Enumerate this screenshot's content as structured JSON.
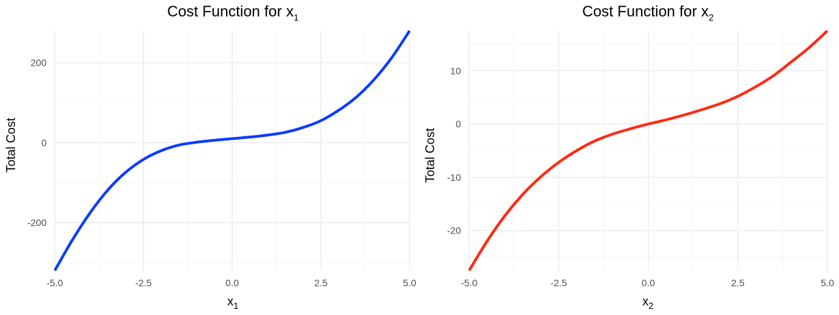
{
  "colors": {
    "panel1_line": "#0a3cff",
    "panel2_line": "#ff2a12"
  },
  "chart_data": [
    {
      "type": "line",
      "title": "Cost Function for x",
      "title_sub": "1",
      "xlabel": "x",
      "xlabel_sub": "1",
      "ylabel": "Total Cost",
      "xlim": [
        -5,
        5
      ],
      "ylim": [
        -320,
        280
      ],
      "x_ticks": [
        -5.0,
        -2.5,
        0.0,
        2.5,
        5.0
      ],
      "x_tick_labels": [
        "-5.0",
        "-2.5",
        "0.0",
        "2.5",
        "5.0"
      ],
      "y_ticks": [
        -200,
        0,
        200
      ],
      "y_tick_labels": [
        "-200",
        "0",
        "200"
      ],
      "grid": true,
      "legend": "none",
      "series": [
        {
          "color": "#0a3cff",
          "x": [
            -5.0,
            -4.5,
            -4.0,
            -3.5,
            -3.0,
            -2.5,
            -2.0,
            -1.5,
            -1.0,
            -0.5,
            0.0,
            0.5,
            1.0,
            1.5,
            2.0,
            2.5,
            3.0,
            3.5,
            4.0,
            4.5,
            5.0
          ],
          "y": [
            -320,
            -243,
            -175,
            -118,
            -74,
            -42,
            -20,
            -6,
            1,
            6,
            10,
            14,
            19,
            26,
            38,
            55,
            81,
            114,
            158,
            213,
            280
          ]
        }
      ]
    },
    {
      "type": "line",
      "title": "Cost Function for x",
      "title_sub": "2",
      "xlabel": "x",
      "xlabel_sub": "2",
      "ylabel": "Total Cost",
      "xlim": [
        -5,
        5
      ],
      "ylim": [
        -27.5,
        17.5
      ],
      "x_ticks": [
        -5.0,
        -2.5,
        0.0,
        2.5,
        5.0
      ],
      "x_tick_labels": [
        "-5.0",
        "-2.5",
        "0.0",
        "2.5",
        "5.0"
      ],
      "y_ticks": [
        -20,
        -10,
        0,
        10
      ],
      "y_tick_labels": [
        "-20",
        "-10",
        "0",
        "10"
      ],
      "grid": true,
      "legend": "none",
      "series": [
        {
          "color": "#ff2a12",
          "x": [
            -5.0,
            -4.5,
            -4.0,
            -3.5,
            -3.0,
            -2.5,
            -2.0,
            -1.5,
            -1.0,
            -0.5,
            0.0,
            0.5,
            1.0,
            1.5,
            2.0,
            2.5,
            3.0,
            3.5,
            4.0,
            4.5,
            5.0
          ],
          "y": [
            -27.5,
            -22.0,
            -17.2,
            -13.2,
            -9.9,
            -7.2,
            -5.0,
            -3.2,
            -1.9,
            -0.9,
            0.0,
            0.8,
            1.7,
            2.7,
            3.8,
            5.2,
            7.0,
            9.1,
            11.7,
            14.4,
            17.5
          ]
        }
      ]
    }
  ]
}
